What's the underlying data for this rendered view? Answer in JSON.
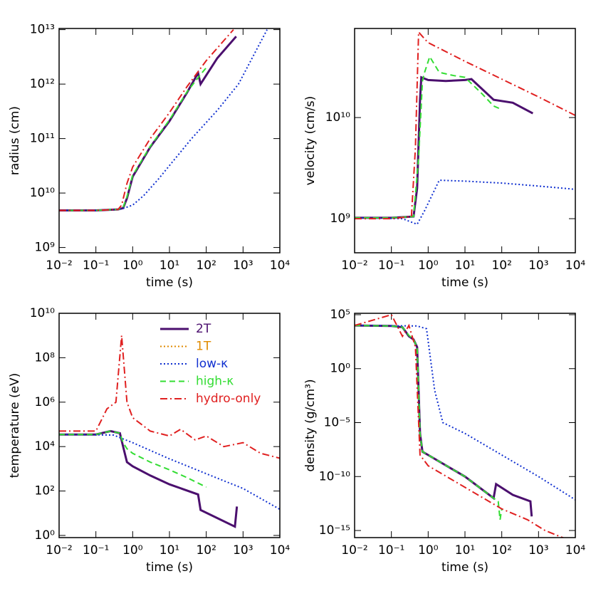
{
  "chart_data": [
    {
      "type": "line",
      "xlabel": "time (s)",
      "ylabel": "radius (cm)",
      "xlog": true,
      "ylog": true,
      "xlim": [
        0.01,
        10000
      ],
      "ylim": [
        800000000.0,
        10500000000000.0
      ],
      "xticks": [
        {
          "value": 0.01,
          "label": "10⁻²"
        },
        {
          "value": 0.1,
          "label": "10⁻¹"
        },
        {
          "value": 1,
          "label": "10⁰"
        },
        {
          "value": 10,
          "label": "10¹"
        },
        {
          "value": 100,
          "label": "10²"
        },
        {
          "value": 1000,
          "label": "10³"
        },
        {
          "value": 10000,
          "label": "10⁴"
        }
      ],
      "yticks": [
        {
          "value": 1000000000.0,
          "label": "10⁹"
        },
        {
          "value": 10000000000.0,
          "label": "10¹⁰"
        },
        {
          "value": 100000000000.0,
          "label": "10¹¹"
        },
        {
          "value": 1000000000000.0,
          "label": "10¹²"
        },
        {
          "value": 10000000000000.0,
          "label": "10¹³"
        }
      ],
      "series": [
        {
          "color": "#e08a00",
          "dash": "dotted",
          "width": 2,
          "x": [
            0.01,
            0.1,
            0.4,
            0.55,
            0.7,
            1,
            3,
            10,
            30,
            60,
            70,
            200,
            650
          ],
          "values": [
            4800000000.0,
            4800000000.0,
            5000000000.0,
            5300000000.0,
            8000000000.0,
            20000000000.0,
            70000000000.0,
            210000000000.0,
            700000000000.0,
            1600000000000.0,
            1000000000000.0,
            3000000000000.0,
            7500000000000.0
          ]
        },
        {
          "color": "#4b0f6e",
          "dash": "solid",
          "width": 3,
          "x": [
            0.01,
            0.1,
            0.4,
            0.55,
            0.7,
            1,
            3,
            10,
            30,
            60,
            70,
            200,
            650
          ],
          "values": [
            4800000000.0,
            4800000000.0,
            5000000000.0,
            5300000000.0,
            8000000000.0,
            20000000000.0,
            70000000000.0,
            210000000000.0,
            700000000000.0,
            1600000000000.0,
            1000000000000.0,
            3000000000000.0,
            7500000000000.0
          ]
        },
        {
          "color": "#1030d0",
          "dash": "dotted",
          "width": 2,
          "x": [
            0.01,
            0.1,
            0.5,
            1,
            2,
            5,
            10,
            40,
            200,
            750,
            4500
          ],
          "values": [
            4800000000.0,
            4800000000.0,
            5100000000.0,
            6000000000.0,
            9000000000.0,
            18000000000.0,
            32000000000.0,
            100000000000.0,
            330000000000.0,
            1000000000000.0,
            10000000000000.0
          ]
        },
        {
          "color": "#33dd33",
          "dash": "dashed",
          "width": 2,
          "x": [
            0.01,
            0.1,
            0.4,
            0.55,
            0.7,
            1,
            3,
            10,
            30,
            70,
            100
          ],
          "values": [
            4800000000.0,
            4800000000.0,
            5000000000.0,
            5400000000.0,
            8500000000.0,
            21000000000.0,
            72000000000.0,
            220000000000.0,
            720000000000.0,
            1500000000000.0,
            2000000000000.0
          ]
        },
        {
          "color": "#e02020",
          "dash": "dashdot",
          "width": 2,
          "x": [
            0.01,
            0.1,
            0.4,
            0.5,
            0.7,
            1,
            3,
            10,
            30,
            100,
            550
          ],
          "values": [
            4800000000.0,
            4800000000.0,
            5000000000.0,
            6000000000.0,
            15000000000.0,
            30000000000.0,
            100000000000.0,
            300000000000.0,
            900000000000.0,
            2700000000000.0,
            10000000000000.0
          ]
        }
      ]
    },
    {
      "type": "line",
      "xlabel": "time (s)",
      "ylabel": "velocity (cm/s)",
      "xlog": true,
      "ylog": true,
      "xlim": [
        0.01,
        10000
      ],
      "ylim": [
        460000000.0,
        76000000000.0
      ],
      "xticks": [
        {
          "value": 0.01,
          "label": "10⁻²"
        },
        {
          "value": 0.1,
          "label": "10⁻¹"
        },
        {
          "value": 1,
          "label": "10⁰"
        },
        {
          "value": 10,
          "label": "10¹"
        },
        {
          "value": 100,
          "label": "10²"
        },
        {
          "value": 1000,
          "label": "10³"
        },
        {
          "value": 10000,
          "label": "10⁴"
        }
      ],
      "yticks": [
        {
          "value": 1000000000.0,
          "label": "10⁹"
        },
        {
          "value": 10000000000.0,
          "label": "10¹⁰"
        }
      ],
      "series": [
        {
          "color": "#e08a00",
          "dash": "dotted",
          "width": 2,
          "x": [
            0.01,
            0.1,
            0.4,
            0.5,
            0.6,
            0.65,
            1,
            3,
            10,
            15,
            60,
            200,
            700
          ],
          "values": [
            1020000000.0,
            1020000000.0,
            1050000000.0,
            2000000000.0,
            15000000000.0,
            25000000000.0,
            23500000000.0,
            23000000000.0,
            23500000000.0,
            24000000000.0,
            15000000000.0,
            14000000000.0,
            11000000000.0
          ]
        },
        {
          "color": "#4b0f6e",
          "dash": "solid",
          "width": 3,
          "x": [
            0.01,
            0.1,
            0.4,
            0.5,
            0.6,
            0.65,
            1,
            3,
            10,
            15,
            60,
            200,
            700
          ],
          "values": [
            1020000000.0,
            1020000000.0,
            1050000000.0,
            2000000000.0,
            15000000000.0,
            25000000000.0,
            23500000000.0,
            23000000000.0,
            23500000000.0,
            24000000000.0,
            15000000000.0,
            14000000000.0,
            11000000000.0
          ]
        },
        {
          "color": "#1030d0",
          "dash": "dotted",
          "width": 2,
          "x": [
            0.01,
            0.2,
            0.5,
            0.8,
            2,
            10,
            100,
            1000,
            10000
          ],
          "values": [
            1020000000.0,
            1000000000.0,
            880000000.0,
            1200000000.0,
            2400000000.0,
            2350000000.0,
            2250000000.0,
            2100000000.0,
            1950000000.0
          ]
        },
        {
          "color": "#33dd33",
          "dash": "dashed",
          "width": 2,
          "x": [
            0.01,
            0.1,
            0.4,
            0.55,
            0.7,
            0.8,
            1.1,
            2,
            5,
            10,
            30,
            60,
            100
          ],
          "values": [
            1020000000.0,
            1020000000.0,
            1050000000.0,
            4000000000.0,
            23000000000.0,
            28000000000.0,
            40000000000.0,
            28000000000.0,
            26000000000.0,
            25000000000.0,
            17000000000.0,
            13000000000.0,
            12000000000.0
          ]
        },
        {
          "color": "#e02020",
          "dash": "dashdot",
          "width": 2,
          "x": [
            0.01,
            0.1,
            0.35,
            0.45,
            0.55,
            0.8,
            1,
            10,
            100,
            1000,
            10000
          ],
          "values": [
            1000000000.0,
            1000000000.0,
            1050000000.0,
            5000000000.0,
            70000000000.0,
            60000000000.0,
            55000000000.0,
            36000000000.0,
            24000000000.0,
            16000000000.0,
            10500000000.0
          ]
        }
      ]
    },
    {
      "type": "line",
      "xlabel": "time (s)",
      "ylabel": "temperature (eV)",
      "xlog": true,
      "ylog": true,
      "xlim": [
        0.01,
        10000
      ],
      "ylim": [
        0.8,
        10000000000.0
      ],
      "legend": "center",
      "xticks": [
        {
          "value": 0.01,
          "label": "10⁻²"
        },
        {
          "value": 0.1,
          "label": "10⁻¹"
        },
        {
          "value": 1,
          "label": "10⁰"
        },
        {
          "value": 10,
          "label": "10¹"
        },
        {
          "value": 100,
          "label": "10²"
        },
        {
          "value": 1000,
          "label": "10³"
        },
        {
          "value": 10000,
          "label": "10⁴"
        }
      ],
      "yticks": [
        {
          "value": 1,
          "label": "10⁰"
        },
        {
          "value": 100,
          "label": "10²"
        },
        {
          "value": 10000,
          "label": "10⁴"
        },
        {
          "value": 1000000,
          "label": "10⁶"
        },
        {
          "value": 100000000,
          "label": "10⁸"
        },
        {
          "value": 10000000000,
          "label": "10¹⁰"
        }
      ],
      "series": [
        {
          "name": "1T",
          "color": "#e08a00",
          "dash": "dotted",
          "width": 2,
          "x": [
            0.01,
            0.1,
            0.25,
            0.45,
            0.55,
            0.7,
            1,
            3,
            10,
            60,
            70,
            600,
            680
          ],
          "values": [
            35000.0,
            35000.0,
            50000.0,
            40000.0,
            10000.0,
            2000.0,
            1300.0,
            500,
            200,
            70,
            14,
            2.5,
            20
          ]
        },
        {
          "name": "2T",
          "color": "#4b0f6e",
          "dash": "solid",
          "width": 3,
          "x": [
            0.01,
            0.1,
            0.25,
            0.45,
            0.55,
            0.7,
            1,
            3,
            10,
            60,
            70,
            600,
            680
          ],
          "values": [
            35000.0,
            35000.0,
            50000.0,
            40000.0,
            10000.0,
            2000.0,
            1300.0,
            500,
            200,
            70,
            14,
            2.5,
            20
          ]
        },
        {
          "name": "low-κ",
          "color": "#1030d0",
          "dash": "dotted",
          "width": 2,
          "x": [
            0.01,
            0.3,
            1,
            10,
            100,
            1000,
            10000
          ],
          "values": [
            35000.0,
            33000.0,
            15000.0,
            2800.0,
            600,
            130,
            15
          ]
        },
        {
          "name": "high-κ",
          "color": "#33dd33",
          "dash": "dashed",
          "width": 2,
          "x": [
            0.01,
            0.1,
            0.25,
            0.45,
            0.55,
            0.7,
            1,
            3,
            10,
            30,
            100
          ],
          "values": [
            35000.0,
            35000.0,
            50000.0,
            40000.0,
            15000.0,
            8000.0,
            5000.0,
            2000.0,
            900,
            400,
            150
          ]
        },
        {
          "name": "hydro-only",
          "color": "#e02020",
          "dash": "dashdot",
          "width": 2,
          "x": [
            0.01,
            0.1,
            0.2,
            0.35,
            0.5,
            0.7,
            1,
            3,
            10,
            20,
            50,
            100,
            300,
            1000,
            3000,
            10000
          ],
          "values": [
            50000.0,
            50000.0,
            500000.0,
            1000000.0,
            1000000000.0,
            1000000.0,
            200000.0,
            50000.0,
            30000.0,
            60000.0,
            20000.0,
            30000.0,
            10000.0,
            15000.0,
            5000.0,
            3000.0
          ]
        }
      ]
    },
    {
      "type": "line",
      "xlabel": "time (s)",
      "ylabel": "density (g/cm³)",
      "xlog": true,
      "ylog": true,
      "xlim": [
        0.01,
        10000
      ],
      "ylim": [
        2.2e-16,
        135000.0
      ],
      "xticks": [
        {
          "value": 0.01,
          "label": "10⁻²"
        },
        {
          "value": 0.1,
          "label": "10⁻¹"
        },
        {
          "value": 1,
          "label": "10⁰"
        },
        {
          "value": 10,
          "label": "10¹"
        },
        {
          "value": 100,
          "label": "10²"
        },
        {
          "value": 1000,
          "label": "10³"
        },
        {
          "value": 10000,
          "label": "10⁴"
        }
      ],
      "yticks": [
        {
          "value": 1e-15,
          "label": "10⁻¹⁵"
        },
        {
          "value": 1e-10,
          "label": "10⁻¹⁰"
        },
        {
          "value": 1e-05,
          "label": "10⁻⁵"
        },
        {
          "value": 1,
          "label": "10⁰"
        },
        {
          "value": 100000,
          "label": "10⁵"
        }
      ],
      "series": [
        {
          "color": "#e08a00",
          "dash": "dotted",
          "width": 2,
          "x": [
            0.01,
            0.1,
            0.2,
            0.3,
            0.4,
            0.5,
            0.6,
            0.7,
            1,
            10,
            60,
            70,
            200,
            600,
            650
          ],
          "values": [
            10000.0,
            9000.0,
            7000.0,
            1000.0,
            500,
            100,
            1e-06,
            2e-08,
            1e-08,
            1e-10,
            1e-12,
            2e-11,
            2e-12,
            5e-13,
            2e-14
          ]
        },
        {
          "color": "#4b0f6e",
          "dash": "solid",
          "width": 3,
          "x": [
            0.01,
            0.1,
            0.2,
            0.3,
            0.4,
            0.5,
            0.6,
            0.7,
            1,
            10,
            60,
            70,
            200,
            600,
            650
          ],
          "values": [
            10000.0,
            9000.0,
            7000.0,
            1000.0,
            500,
            100,
            1e-06,
            2e-08,
            1e-08,
            1e-10,
            1e-12,
            2e-11,
            2e-12,
            5e-13,
            2e-14
          ]
        },
        {
          "color": "#1030d0",
          "dash": "dotted",
          "width": 2,
          "x": [
            0.01,
            0.5,
            0.9,
            1.5,
            2.5,
            10,
            100,
            1000,
            10000
          ],
          "values": [
            10000.0,
            9000.0,
            5000.0,
            0.01,
            1e-05,
            1e-06,
            1e-08,
            1e-10,
            7e-13
          ]
        },
        {
          "color": "#33dd33",
          "dash": "dashed",
          "width": 2,
          "x": [
            0.01,
            0.1,
            0.2,
            0.3,
            0.4,
            0.5,
            0.6,
            0.7,
            1,
            10,
            60,
            80,
            90,
            100
          ],
          "values": [
            10000.0,
            9000.0,
            7000.0,
            1200.0,
            500,
            100,
            1e-06,
            2e-08,
            1e-08,
            1e-10,
            1e-12,
            5e-13,
            1e-14,
            1e-13
          ]
        },
        {
          "color": "#e02020",
          "dash": "dashdot",
          "width": 2,
          "x": [
            0.01,
            0.1,
            0.2,
            0.3,
            0.45,
            0.6,
            1,
            10,
            100,
            500,
            1500,
            6000
          ],
          "values": [
            10000.0,
            100000.0,
            1000.0,
            10000.0,
            100,
            1e-08,
            1e-09,
            1e-11,
            1e-13,
            1e-14,
            1e-15,
            1.5e-16
          ]
        }
      ]
    }
  ]
}
